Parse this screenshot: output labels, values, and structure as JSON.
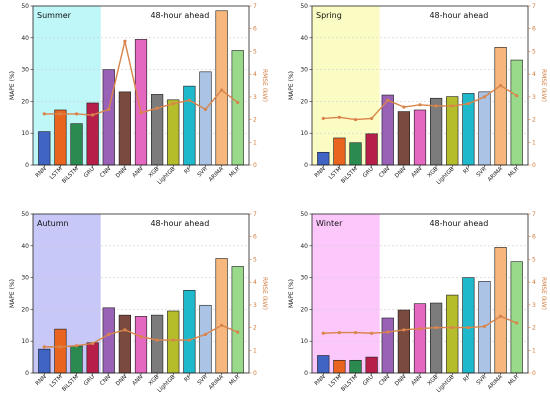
{
  "colors": {
    "bars": [
      "#3f64c4",
      "#e8641f",
      "#2a8a50",
      "#b71f4a",
      "#9a62b6",
      "#7a4a3e",
      "#e468c0",
      "#7c7c7c",
      "#b6bd2a",
      "#1fb9cc",
      "#abc4e6",
      "#f7b77c",
      "#98d98a"
    ],
    "rmse_line": "#d9844b",
    "rmse_axis": "#d07a3c",
    "grid": "#cfcfcf"
  },
  "chart_data": [
    {
      "type": "bar",
      "season": "Summer",
      "horizon": "48-hour ahead",
      "highlight_color": "#bff6f8",
      "xlabel": "",
      "ylabel": "MAPE (%)",
      "y2label": "RMSE (kW)",
      "ylim": [
        0,
        50
      ],
      "y2lim": [
        0,
        7
      ],
      "yticks": [
        0,
        10,
        20,
        30,
        40,
        50
      ],
      "y2ticks": [
        0,
        1,
        2,
        3,
        4,
        5,
        6,
        7
      ],
      "categories": [
        "RNN",
        "LSTM",
        "BiLSTM",
        "GRU",
        "CNN",
        "DNN",
        "ANN",
        "XGB",
        "LightGB",
        "RF",
        "SVR",
        "ARIMA",
        "MLR"
      ],
      "values": [
        10.5,
        17.3,
        13.0,
        19.5,
        30.0,
        23.0,
        39.5,
        22.2,
        20.5,
        24.8,
        29.3,
        48.5,
        36.0
      ],
      "rmse": [
        2.25,
        2.25,
        2.25,
        2.2,
        2.45,
        5.45,
        2.3,
        2.5,
        2.7,
        2.85,
        2.45,
        3.3,
        2.75
      ],
      "grid": "y-dashed"
    },
    {
      "type": "bar",
      "season": "Spring",
      "horizon": "48-hour ahead",
      "highlight_color": "#fbfbc4",
      "xlabel": "",
      "ylabel": "MAPE (%)",
      "y2label": "RMSE (kW)",
      "ylim": [
        0,
        50
      ],
      "y2lim": [
        0,
        7
      ],
      "yticks": [
        0,
        10,
        20,
        30,
        40,
        50
      ],
      "y2ticks": [
        0,
        1,
        2,
        3,
        4,
        5,
        6,
        7
      ],
      "categories": [
        "RNN",
        "LSTM",
        "BiLSTM",
        "GRU",
        "CNN",
        "DNN",
        "ANN",
        "XGB",
        "LightGB",
        "RF",
        "SVR",
        "ARIMA",
        "MLR"
      ],
      "values": [
        4.0,
        8.5,
        7.0,
        9.8,
        22.0,
        16.8,
        17.3,
        21.0,
        21.5,
        22.5,
        23.0,
        37.0,
        33.0
      ],
      "rmse": [
        2.05,
        2.1,
        2.0,
        2.05,
        2.85,
        2.55,
        2.65,
        2.6,
        2.6,
        2.7,
        3.0,
        3.5,
        3.05
      ],
      "grid": "y-dashed"
    },
    {
      "type": "bar",
      "season": "Autumn",
      "horizon": "48-hour ahead",
      "highlight_color": "#c8c8f8",
      "xlabel": "",
      "ylabel": "MAPE (%)",
      "y2label": "RMSE (kW)",
      "ylim": [
        0,
        50
      ],
      "y2lim": [
        0,
        7
      ],
      "yticks": [
        0,
        10,
        20,
        30,
        40,
        50
      ],
      "y2ticks": [
        0,
        1,
        2,
        3,
        4,
        5,
        6,
        7
      ],
      "categories": [
        "RNN",
        "LSTM",
        "BiLSTM",
        "GRU",
        "CNN",
        "DNN",
        "ANN",
        "XGB",
        "LightGB",
        "RF",
        "SVR",
        "ARIMA",
        "MLR"
      ],
      "values": [
        7.5,
        13.8,
        8.5,
        9.5,
        20.5,
        18.2,
        17.8,
        18.2,
        19.5,
        26.0,
        21.3,
        36.0,
        33.5
      ],
      "rmse": [
        1.15,
        1.15,
        1.2,
        1.3,
        1.7,
        1.9,
        1.6,
        1.45,
        1.45,
        1.45,
        1.7,
        2.1,
        1.8
      ],
      "grid": "y-dashed"
    },
    {
      "type": "bar",
      "season": "Winter",
      "horizon": "48-hour ahead",
      "highlight_color": "#fcc8fb",
      "xlabel": "",
      "ylabel": "MAPE (%)",
      "y2label": "RMSE (kW)",
      "ylim": [
        0,
        50
      ],
      "y2lim": [
        0,
        7
      ],
      "yticks": [
        0,
        10,
        20,
        30,
        40,
        50
      ],
      "y2ticks": [
        0,
        1,
        2,
        3,
        4,
        5,
        6,
        7
      ],
      "categories": [
        "RNN",
        "LSTM",
        "BiLSTM",
        "GRU",
        "CNN",
        "DNN",
        "ANN",
        "XGB",
        "LightGB",
        "RF",
        "SVR",
        "ARIMA",
        "MLR"
      ],
      "values": [
        5.5,
        4.0,
        4.0,
        5.0,
        17.3,
        19.8,
        21.8,
        22.0,
        24.5,
        30.0,
        28.8,
        39.5,
        35.0
      ],
      "rmse": [
        1.75,
        1.78,
        1.78,
        1.75,
        1.8,
        1.9,
        1.95,
        2.0,
        2.0,
        2.0,
        2.05,
        2.5,
        2.2
      ],
      "grid": "y-dashed"
    }
  ]
}
